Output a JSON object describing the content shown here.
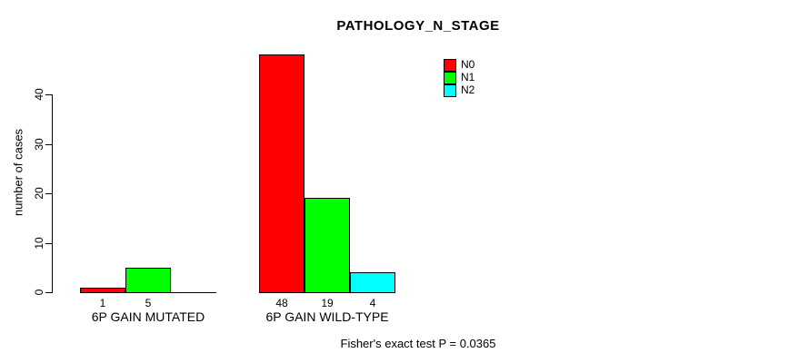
{
  "chart_data": {
    "type": "bar",
    "title": "PATHOLOGY_N_STAGE",
    "xlabel": "",
    "ylabel": "number of cases",
    "ylim": [
      0,
      48
    ],
    "yticks": [
      0,
      10,
      20,
      30,
      40
    ],
    "grid": false,
    "legend_position": "top-right-inside",
    "categories": [
      "6P GAIN MUTATED",
      "6P GAIN WILD-TYPE"
    ],
    "series": [
      {
        "name": "N0",
        "color": "#ff0000",
        "values": [
          1,
          48
        ]
      },
      {
        "name": "N1",
        "color": "#00ff00",
        "values": [
          5,
          19
        ]
      },
      {
        "name": "N2",
        "color": "#00ffff",
        "values": [
          0,
          4
        ]
      }
    ],
    "bar_value_labels": [
      [
        "1",
        "5",
        ""
      ],
      [
        "48",
        "19",
        "4"
      ]
    ],
    "annotation": "Fisher's exact test P = 0.0365",
    "bar_border_color": "#000000",
    "background_color": "#ffffff"
  }
}
